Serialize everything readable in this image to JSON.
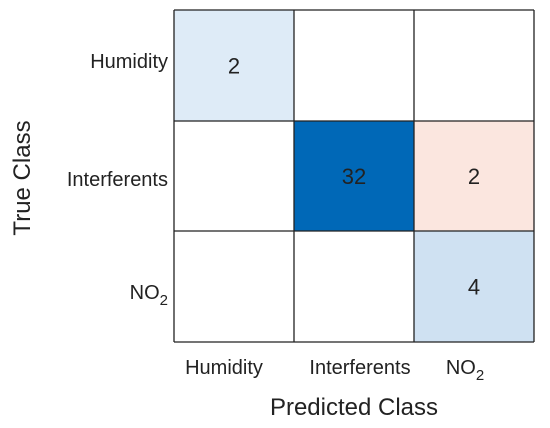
{
  "chart_data": {
    "type": "heatmap",
    "xlabel": "Predicted Class",
    "ylabel": "True Class",
    "x_categories": [
      {
        "text": "Humidity",
        "sub": ""
      },
      {
        "text": "Interferents",
        "sub": ""
      },
      {
        "text": "NO",
        "sub": "2"
      }
    ],
    "y_categories": [
      {
        "text": "Humidity",
        "sub": ""
      },
      {
        "text": "Interferents",
        "sub": ""
      },
      {
        "text": "NO",
        "sub": "2"
      }
    ],
    "values": [
      [
        2,
        null,
        null
      ],
      [
        null,
        32,
        2
      ],
      [
        null,
        null,
        4
      ]
    ],
    "cell_colors": [
      [
        "#deebf7",
        "#ffffff",
        "#ffffff"
      ],
      [
        "#ffffff",
        "#0068b7",
        "#fbe6df"
      ],
      [
        "#ffffff",
        "#ffffff",
        "#cfe1f2"
      ]
    ],
    "dark_text_color": "#222222",
    "light_text_color": "#ffffff",
    "grid_color": "#222222"
  }
}
